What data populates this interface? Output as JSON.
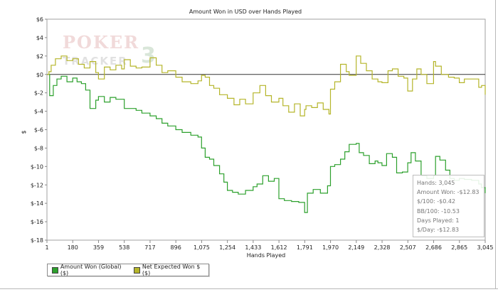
{
  "chart_data": {
    "type": "line",
    "title": "Amount Won in USD over Hands Played",
    "xlabel": "Hands Played",
    "ylabel": "$",
    "xlim": [
      1,
      3045
    ],
    "ylim": [
      -18,
      6
    ],
    "x_ticks": [
      "1",
      "180",
      "359",
      "538",
      "717",
      "896",
      "1,075",
      "1,254",
      "1,433",
      "1,612",
      "1,791",
      "1,970",
      "2,149",
      "2,328",
      "2,507",
      "2,686",
      "2,865",
      "3,045"
    ],
    "y_ticks": [
      "$6",
      "$4",
      "$2",
      "$0",
      "$-2",
      "$-4",
      "$-6",
      "$-8",
      "$-10",
      "$-12",
      "$-14",
      "$-16",
      "$-18"
    ],
    "watermark": "POKER TRACKER 3",
    "series": [
      {
        "name": "Amount Won (Global) ($)",
        "color": "#2ca02c",
        "x": [
          1,
          20,
          45,
          70,
          100,
          140,
          180,
          210,
          240,
          270,
          300,
          340,
          359,
          400,
          440,
          480,
          520,
          538,
          580,
          620,
          660,
          717,
          760,
          800,
          840,
          896,
          940,
          1000,
          1050,
          1075,
          1100,
          1130,
          1160,
          1200,
          1230,
          1254,
          1290,
          1330,
          1380,
          1433,
          1460,
          1500,
          1540,
          1580,
          1612,
          1650,
          1700,
          1750,
          1791,
          1810,
          1850,
          1900,
          1950,
          1970,
          2000,
          2040,
          2070,
          2100,
          2149,
          2170,
          2200,
          2240,
          2280,
          2300,
          2328,
          2360,
          2400,
          2430,
          2470,
          2507,
          2530,
          2560,
          2600,
          2640,
          2686,
          2700,
          2730,
          2770,
          2800,
          2830,
          2865,
          2900,
          2950,
          3000,
          3020,
          3045
        ],
        "y": [
          0,
          -2.3,
          -1.2,
          -0.5,
          -0.2,
          -0.8,
          -0.4,
          -0.8,
          -1.0,
          -1.7,
          -3.7,
          -2.8,
          -2.4,
          -3.0,
          -2.5,
          -2.7,
          -2.7,
          -3.7,
          -3.7,
          -3.9,
          -4.2,
          -4.5,
          -4.8,
          -5.3,
          -5.6,
          -6.0,
          -6.3,
          -6.6,
          -6.8,
          -8.0,
          -9.0,
          -9.2,
          -9.9,
          -10.8,
          -11.7,
          -12.6,
          -12.8,
          -13.0,
          -12.6,
          -12.2,
          -11.9,
          -11.0,
          -11.6,
          -11.3,
          -13.5,
          -13.7,
          -13.8,
          -13.9,
          -15.0,
          -12.9,
          -12.5,
          -12.9,
          -12.1,
          -10.0,
          -9.8,
          -9.2,
          -8.4,
          -7.6,
          -7.5,
          -8.5,
          -8.8,
          -9.7,
          -9.4,
          -9.6,
          -9.9,
          -8.6,
          -9.0,
          -10.7,
          -10.6,
          -9.6,
          -8.5,
          -9.4,
          -11.0,
          -11.3,
          -11.0,
          -8.9,
          -9.3,
          -10.4,
          -11.3,
          -11.5,
          -11.3,
          -11.4,
          -11.5,
          -11.9,
          -12.3,
          -12.9
        ]
      },
      {
        "name": "Net Expected Won $ ($)",
        "color": "#b5b52a",
        "x": [
          1,
          15,
          30,
          60,
          100,
          140,
          180,
          220,
          260,
          300,
          340,
          359,
          400,
          440,
          480,
          520,
          538,
          580,
          620,
          660,
          717,
          760,
          800,
          840,
          896,
          940,
          1000,
          1050,
          1075,
          1100,
          1130,
          1160,
          1200,
          1254,
          1300,
          1340,
          1380,
          1433,
          1480,
          1520,
          1560,
          1612,
          1640,
          1680,
          1720,
          1760,
          1791,
          1800,
          1840,
          1880,
          1920,
          1960,
          1970,
          2000,
          2040,
          2080,
          2100,
          2149,
          2180,
          2220,
          2260,
          2300,
          2328,
          2370,
          2400,
          2440,
          2480,
          2507,
          2540,
          2570,
          2600,
          2640,
          2686,
          2700,
          2740,
          2790,
          2830,
          2865,
          2900,
          2950,
          3000,
          3020,
          3045
        ],
        "y": [
          0,
          0.3,
          1.0,
          1.7,
          2.0,
          1.5,
          1.7,
          1.1,
          0.7,
          1.4,
          0.2,
          -0.5,
          0.8,
          0.5,
          1.0,
          0.6,
          1.6,
          0.9,
          0.7,
          0.8,
          1.8,
          1.0,
          0.2,
          0.4,
          -0.3,
          -0.8,
          -1.0,
          -0.7,
          -0.1,
          -0.3,
          -1.2,
          -1.5,
          -2.2,
          -2.6,
          -3.3,
          -2.7,
          -3.2,
          -2.0,
          -1.2,
          -2.3,
          -3.0,
          -2.6,
          -3.4,
          -4.1,
          -3.2,
          -4.5,
          -3.8,
          -3.4,
          -3.6,
          -3.1,
          -3.8,
          -4.3,
          -1.6,
          -0.8,
          1.1,
          0.3,
          -0.1,
          2.0,
          1.2,
          0.4,
          -0.5,
          -0.8,
          -0.9,
          0.4,
          0.6,
          -0.2,
          -0.4,
          -1.8,
          -0.5,
          0.6,
          0.0,
          -1.0,
          1.4,
          0.9,
          0.0,
          -0.3,
          -0.4,
          -0.9,
          -0.5,
          -0.5,
          -1.4,
          -1.2,
          -2.2
        ]
      }
    ],
    "legend": {
      "placement": "bottom-left",
      "items": [
        "Amount Won (Global) ($)",
        "Net Expected Won $ ($)"
      ]
    },
    "tooltip": {
      "lines": [
        "Hands: 3,045",
        "Amount Won: -$12.83",
        "$/100: -$0.42",
        "BB/100: -10.53",
        "Days Played: 1",
        "$/Day: -$12.83"
      ]
    }
  }
}
